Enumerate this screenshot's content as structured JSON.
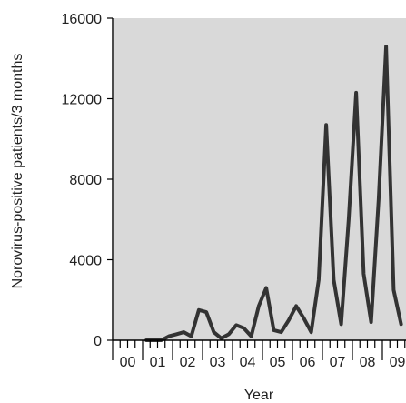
{
  "chart_data": {
    "type": "line",
    "xlabel": "Year",
    "ylabel": "Norovirus-positive patients/3 months",
    "ylim": [
      0,
      16000
    ],
    "y_ticks": [
      "0",
      "4000",
      "8000",
      "12000",
      "16000"
    ],
    "year_labels": [
      "00",
      "01",
      "02",
      "03",
      "04",
      "05",
      "06",
      "07",
      "08",
      "09"
    ],
    "x_unit": "quarter",
    "shaded_bands": "alternating quarters shaded gray",
    "grid": false,
    "series": [
      {
        "values": [
          null,
          null,
          null,
          null,
          0,
          0,
          0,
          200,
          300,
          400,
          200,
          1500,
          1400,
          400,
          100,
          300,
          750,
          600,
          200,
          1700,
          2600,
          500,
          400,
          1000,
          1700,
          1100,
          400,
          3000,
          10700,
          3000,
          800,
          6000,
          12300,
          3300,
          900,
          7000,
          14600,
          2500,
          800
        ]
      }
    ]
  }
}
